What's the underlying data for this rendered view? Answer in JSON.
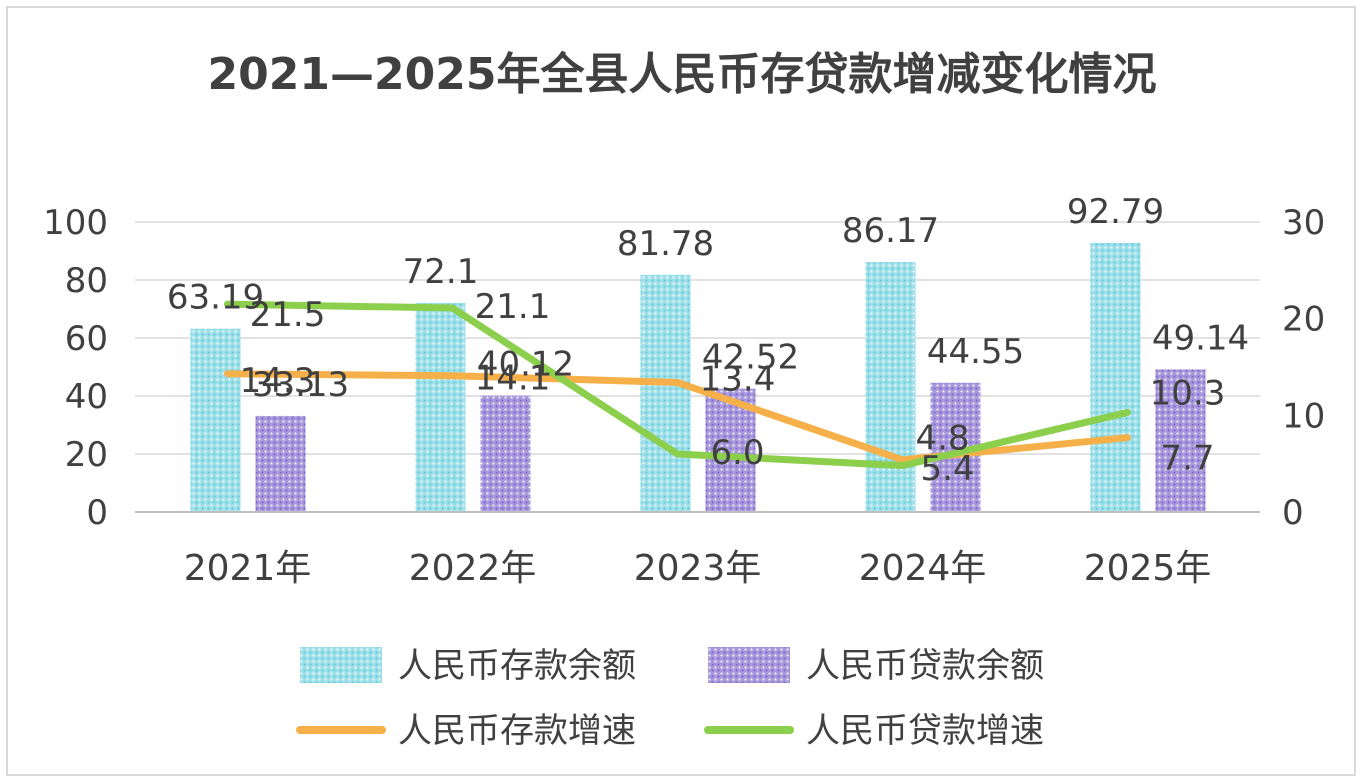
{
  "chart_data": {
    "type": "bar",
    "title": "2021—2025年全县人民币存贷款增减变化情况",
    "categories": [
      "2021年",
      "2022年",
      "2023年",
      "2024年",
      "2025年"
    ],
    "y_left": {
      "ylim": [
        0,
        100
      ],
      "ticks": [
        "0",
        "20",
        "40",
        "60",
        "80",
        "100"
      ]
    },
    "y_right": {
      "ylim": [
        0,
        30
      ],
      "ticks": [
        "0",
        "10",
        "20",
        "30"
      ]
    },
    "series": [
      {
        "name": "人民币存款余额",
        "kind": "bar",
        "axis": "left",
        "color": "#7fd3e0",
        "values": [
          63.19,
          72.1,
          81.78,
          86.17,
          92.79
        ],
        "labels": [
          "63.19",
          "72.1",
          "81.78",
          "86.17",
          "92.79"
        ]
      },
      {
        "name": "人民币贷款余额",
        "kind": "bar",
        "axis": "left",
        "color": "#9b85d6",
        "values": [
          33.13,
          40.12,
          42.52,
          44.55,
          49.14
        ],
        "labels": [
          "33.13",
          "40.12",
          "42.52",
          "44.55",
          "49.14"
        ]
      },
      {
        "name": "人民币存款增速",
        "kind": "line",
        "axis": "right",
        "color": "#f5b04a",
        "values": [
          14.3,
          14.1,
          13.4,
          5.4,
          7.7
        ],
        "labels": [
          "14.3",
          "14.1",
          "13.4",
          "5.4",
          "7.7"
        ]
      },
      {
        "name": "人民币贷款增速",
        "kind": "line",
        "axis": "right",
        "color": "#8ccf4d",
        "values": [
          21.5,
          21.1,
          6.0,
          4.8,
          10.3
        ],
        "labels": [
          "21.5",
          "21.1",
          "6.0",
          "4.8",
          "10.3"
        ]
      }
    ],
    "grid": true,
    "legend": "bottom"
  }
}
